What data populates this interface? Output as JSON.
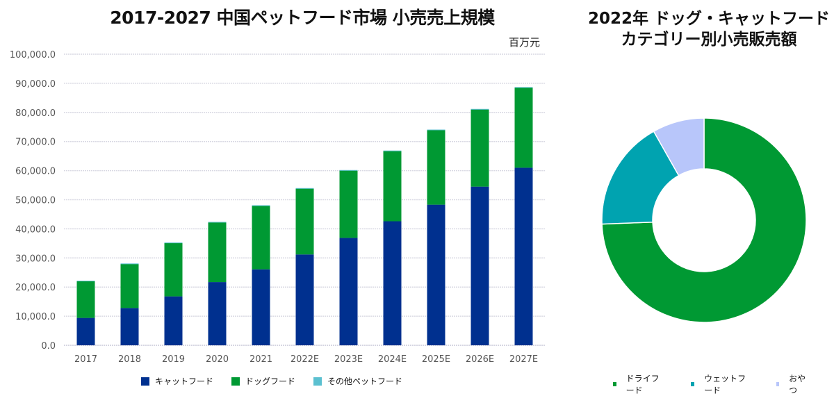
{
  "chart_data": [
    {
      "type": "bar",
      "stacked": true,
      "title": "2017-2027 中国ペットフード市場 小売売上規模",
      "unit_label": "百万元",
      "xlabel": "",
      "ylabel": "",
      "ylim": [
        0,
        100000
      ],
      "yticks": [
        0,
        10000,
        20000,
        30000,
        40000,
        50000,
        60000,
        70000,
        80000,
        90000,
        100000
      ],
      "ytick_labels": [
        "0.0",
        "10,000.0",
        "20,000.0",
        "30,000.0",
        "40,000.0",
        "50,000.0",
        "60,000.0",
        "70,000.0",
        "80,000.0",
        "90,000.0",
        "100,000.0"
      ],
      "grid": true,
      "legend_position": "bottom",
      "categories": [
        "2017",
        "2018",
        "2019",
        "2020",
        "2021",
        "2022E",
        "2023E",
        "2024E",
        "2025E",
        "2026E",
        "2027E"
      ],
      "series": [
        {
          "name": "キャットフード",
          "color": "#00308f",
          "values": [
            9400,
            12800,
            16800,
            21700,
            26100,
            31200,
            36900,
            42600,
            48300,
            54500,
            61000
          ]
        },
        {
          "name": "ドッグフード",
          "color": "#009933",
          "values": [
            12600,
            15100,
            18300,
            20500,
            21800,
            22600,
            23100,
            24100,
            25600,
            26500,
            27500
          ]
        },
        {
          "name": "その他ペットフード",
          "color": "#5bc0d0",
          "values": [
            200,
            200,
            200,
            200,
            200,
            200,
            200,
            200,
            200,
            200,
            200
          ]
        }
      ]
    },
    {
      "type": "pie",
      "donut": true,
      "title_line1": "2022年 ドッグ・キャットフード",
      "title_line2": "カテゴリー別小売販売額",
      "legend_position": "bottom",
      "categories": [
        "ドライフード",
        "ウェットフード",
        "おやつ"
      ],
      "values": [
        74.4,
        17.4,
        8.2
      ],
      "value_unit": "%",
      "colors": [
        "#009933",
        "#00a3b0",
        "#b8c6fa"
      ]
    }
  ]
}
